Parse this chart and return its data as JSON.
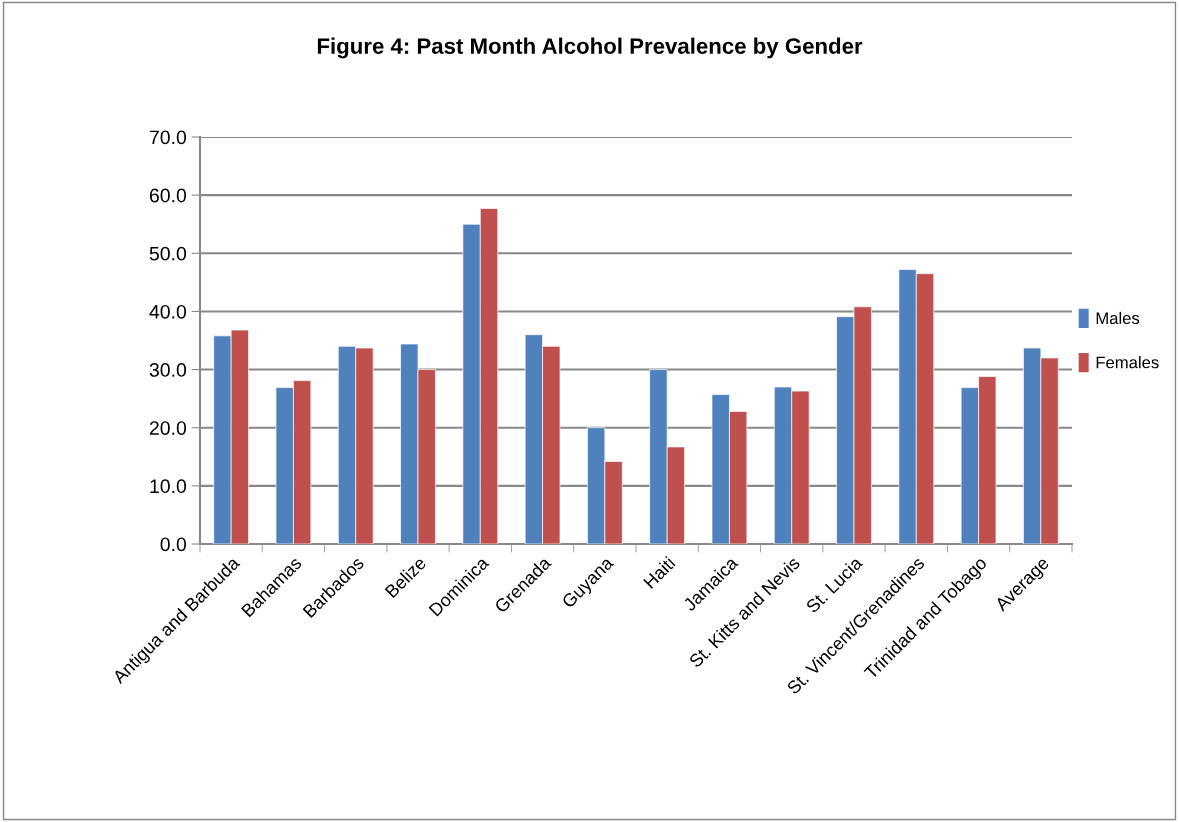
{
  "chart_data": {
    "type": "bar",
    "title": "Figure 4: Past Month Alcohol Prevalence by Gender",
    "categories": [
      "Antigua and Barbuda",
      "Bahamas",
      "Barbados",
      "Belize",
      "Dominica",
      "Grenada",
      "Guyana",
      "Haiti",
      "Jamaica",
      "St. Kitts and Nevis",
      "St. Lucia",
      "St. Vincent/Grenadines",
      "Trinidad and Tobago",
      "Average"
    ],
    "series": [
      {
        "name": "Males",
        "color": "#4f81bd",
        "values": [
          35.8,
          26.9,
          34.0,
          34.4,
          55.0,
          36.0,
          20.0,
          30.0,
          25.7,
          27.0,
          39.1,
          47.2,
          26.9,
          33.7
        ]
      },
      {
        "name": "Females",
        "color": "#c0504d",
        "values": [
          36.8,
          28.1,
          33.7,
          30.0,
          57.7,
          34.0,
          14.2,
          16.7,
          22.8,
          26.3,
          40.8,
          46.5,
          28.8,
          32.0
        ]
      }
    ],
    "ylim": [
      0,
      70
    ],
    "yticks": [
      {
        "value": 0,
        "label": "0.0"
      },
      {
        "value": 10,
        "label": "10.0"
      },
      {
        "value": 20,
        "label": "20.0"
      },
      {
        "value": 30,
        "label": "30.0"
      },
      {
        "value": 40,
        "label": "40.0"
      },
      {
        "value": 50,
        "label": "50.0"
      },
      {
        "value": 60,
        "label": "60.0"
      },
      {
        "value": 70,
        "label": "70.0"
      }
    ],
    "grid": "y",
    "legend": "right"
  }
}
